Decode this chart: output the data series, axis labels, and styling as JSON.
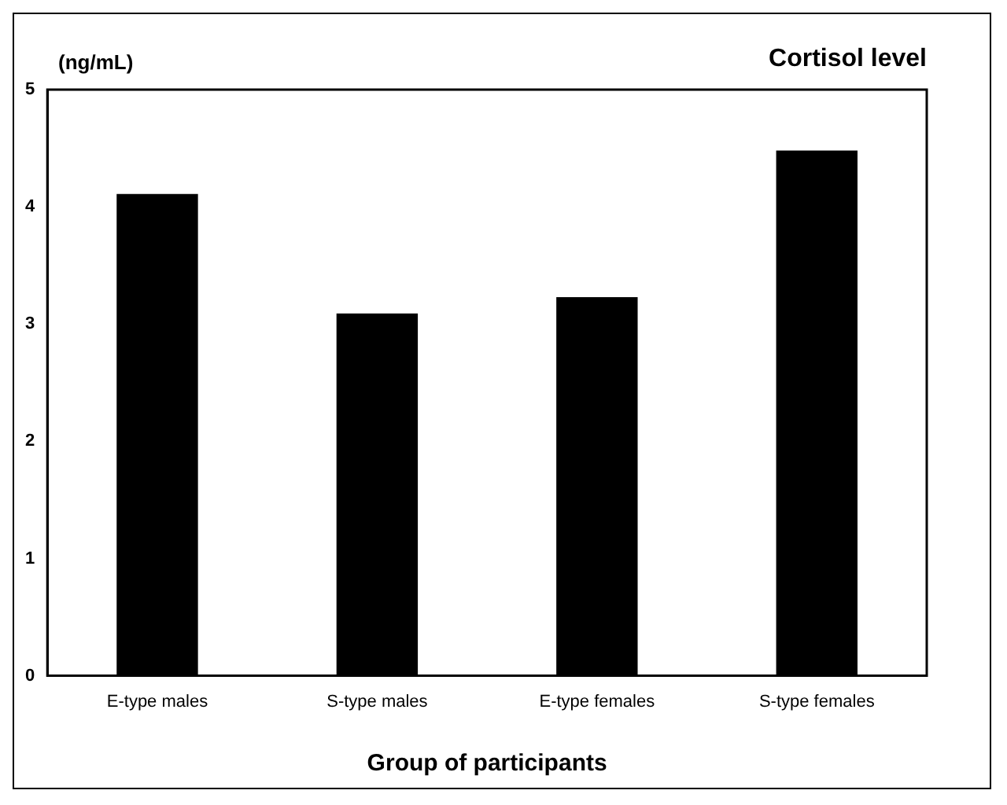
{
  "chart_data": {
    "type": "bar",
    "title": "Cortisol level",
    "ylabel": "(ng/mL)",
    "xlabel": "Group of participants",
    "categories": [
      "E-type males",
      "S-type males",
      "E-type females",
      "S-type females"
    ],
    "values": [
      4.11,
      3.09,
      3.23,
      4.48
    ],
    "color": "#000000",
    "ylim": [
      0,
      5
    ],
    "yticks": [
      0,
      1,
      2,
      3,
      4,
      5
    ],
    "grid": false
  }
}
